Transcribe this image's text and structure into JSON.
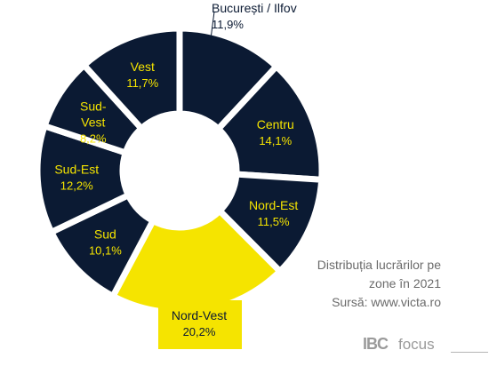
{
  "chart_data": {
    "type": "pie",
    "donut": true,
    "labels": [
      "București / Ilfov",
      "Centru",
      "Nord-Est",
      "Nord-Vest",
      "Sud",
      "Sud-Est",
      "Sud-Vest",
      "Vest"
    ],
    "values": [
      11.9,
      14.1,
      11.5,
      20.2,
      10.1,
      12.2,
      8.2,
      11.7
    ],
    "value_labels": [
      "11,9%",
      "14,1%",
      "11,5%",
      "20,2%",
      "10,1%",
      "12,2%",
      "8,2%",
      "11,7%"
    ],
    "highlighted": "Nord-Vest",
    "colors": {
      "segment": "#0b1a33",
      "highlight": "#f5e400",
      "dark_label": "#f5e400",
      "highlight_label": "#0b1a33",
      "separator": "#ffffff",
      "outside_label": "#0b1a33"
    }
  },
  "caption": {
    "line1": "Distribuția lucrărilor pe",
    "line2": "zone în 2021",
    "line3": "Sursă: www.victa.ro"
  },
  "brand": {
    "mark": "IBC",
    "word": "focus"
  }
}
